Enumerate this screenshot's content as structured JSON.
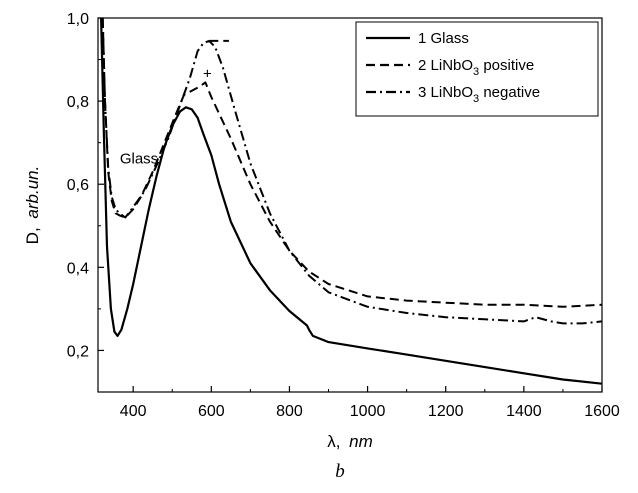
{
  "chart_data": {
    "type": "line",
    "xlabel_symbol": "λ,",
    "xlabel_unit": "nm",
    "ylabel_symbol": "D,",
    "ylabel_unit": "arb.un.",
    "panel_label": "b",
    "xlim": [
      310,
      1600
    ],
    "ylim": [
      0.1,
      1.0
    ],
    "xticks": [
      400,
      600,
      800,
      1000,
      1200,
      1400,
      1600
    ],
    "xtick_labels": [
      "400",
      "600",
      "800",
      "1000",
      "1200",
      "1400",
      "1600"
    ],
    "yticks": [
      0.2,
      0.4,
      0.6,
      0.8,
      1.0
    ],
    "ytick_labels": [
      "0,2",
      "0,4",
      "0,6",
      "0,8",
      "1,0"
    ],
    "legend_position": "top-right",
    "legend": [
      {
        "number": "1",
        "text": "Glass",
        "sub": "",
        "tail": ""
      },
      {
        "number": "2",
        "text": "LiNbO",
        "sub": "3",
        "tail": " positive"
      },
      {
        "number": "3",
        "text": "LiNbO",
        "sub": "3",
        "tail": " negative"
      }
    ],
    "annotations": [
      {
        "text": "Glass",
        "x": 415,
        "y": 0.65
      },
      {
        "text": "+",
        "x": 590,
        "y": 0.855
      }
    ],
    "series": [
      {
        "style": "solid",
        "points": [
          [
            318,
            1.0
          ],
          [
            325,
            0.72
          ],
          [
            333,
            0.45
          ],
          [
            343,
            0.3
          ],
          [
            352,
            0.245
          ],
          [
            360,
            0.235
          ],
          [
            370,
            0.25
          ],
          [
            385,
            0.3
          ],
          [
            400,
            0.36
          ],
          [
            420,
            0.45
          ],
          [
            440,
            0.54
          ],
          [
            460,
            0.62
          ],
          [
            480,
            0.69
          ],
          [
            500,
            0.74
          ],
          [
            520,
            0.775
          ],
          [
            535,
            0.785
          ],
          [
            550,
            0.78
          ],
          [
            565,
            0.76
          ],
          [
            580,
            0.72
          ],
          [
            600,
            0.67
          ],
          [
            620,
            0.6
          ],
          [
            650,
            0.51
          ],
          [
            700,
            0.41
          ],
          [
            750,
            0.345
          ],
          [
            800,
            0.295
          ],
          [
            845,
            0.26
          ],
          [
            850,
            0.25
          ],
          [
            860,
            0.235
          ],
          [
            900,
            0.22
          ],
          [
            1000,
            0.205
          ],
          [
            1100,
            0.19
          ],
          [
            1200,
            0.175
          ],
          [
            1300,
            0.16
          ],
          [
            1400,
            0.145
          ],
          [
            1500,
            0.13
          ],
          [
            1600,
            0.12
          ]
        ]
      },
      {
        "style": "dashed",
        "points": [
          [
            322,
            1.0
          ],
          [
            328,
            0.8
          ],
          [
            336,
            0.63
          ],
          [
            345,
            0.56
          ],
          [
            355,
            0.53
          ],
          [
            365,
            0.525
          ],
          [
            380,
            0.52
          ],
          [
            400,
            0.54
          ],
          [
            420,
            0.57
          ],
          [
            450,
            0.63
          ],
          [
            480,
            0.7
          ],
          [
            510,
            0.77
          ],
          [
            530,
            0.815
          ],
          [
            550,
            0.825
          ],
          [
            570,
            0.835
          ],
          [
            585,
            0.845
          ],
          [
            600,
            0.81
          ],
          [
            620,
            0.77
          ],
          [
            650,
            0.71
          ],
          [
            700,
            0.6
          ],
          [
            750,
            0.51
          ],
          [
            800,
            0.44
          ],
          [
            850,
            0.39
          ],
          [
            900,
            0.36
          ],
          [
            1000,
            0.33
          ],
          [
            1100,
            0.32
          ],
          [
            1200,
            0.315
          ],
          [
            1300,
            0.31
          ],
          [
            1400,
            0.31
          ],
          [
            1500,
            0.305
          ],
          [
            1600,
            0.31
          ]
        ]
      },
      {
        "style": "dashdot",
        "points": [
          [
            322,
            1.0
          ],
          [
            328,
            0.8
          ],
          [
            336,
            0.64
          ],
          [
            345,
            0.57
          ],
          [
            355,
            0.54
          ],
          [
            365,
            0.53
          ],
          [
            380,
            0.52
          ],
          [
            400,
            0.545
          ],
          [
            430,
            0.585
          ],
          [
            460,
            0.645
          ],
          [
            490,
            0.71
          ],
          [
            520,
            0.79
          ],
          [
            545,
            0.855
          ],
          [
            565,
            0.92
          ],
          [
            580,
            0.94
          ],
          [
            595,
            0.945
          ],
          [
            610,
            0.93
          ],
          [
            630,
            0.88
          ],
          [
            660,
            0.78
          ],
          [
            700,
            0.65
          ],
          [
            750,
            0.53
          ],
          [
            800,
            0.44
          ],
          [
            850,
            0.38
          ],
          [
            900,
            0.34
          ],
          [
            1000,
            0.305
          ],
          [
            1100,
            0.29
          ],
          [
            1200,
            0.28
          ],
          [
            1300,
            0.275
          ],
          [
            1400,
            0.27
          ],
          [
            1430,
            0.28
          ],
          [
            1470,
            0.27
          ],
          [
            1500,
            0.265
          ],
          [
            1550,
            0.265
          ],
          [
            1600,
            0.27
          ]
        ]
      },
      {
        "style": "dashed",
        "points": [
          [
            595,
            0.945
          ],
          [
            615,
            0.945
          ],
          [
            645,
            0.945
          ]
        ]
      }
    ]
  }
}
